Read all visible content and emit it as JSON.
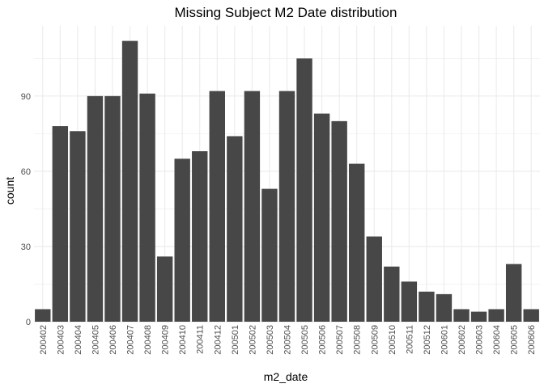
{
  "chart_data": {
    "type": "bar",
    "title": "Missing Subject M2 Date distribution",
    "xlabel": "m2_date",
    "ylabel": "count",
    "ylim": [
      0,
      118
    ],
    "y_ticks": [
      0,
      30,
      60,
      90
    ],
    "grid": true,
    "bar_color": "#474747",
    "grid_color": "#ebebeb",
    "categories": [
      "200402",
      "200403",
      "200404",
      "200405",
      "200406",
      "200407",
      "200408",
      "200409",
      "200410",
      "200411",
      "200412",
      "200501",
      "200502",
      "200503",
      "200504",
      "200505",
      "200506",
      "200507",
      "200508",
      "200509",
      "200510",
      "200511",
      "200512",
      "200601",
      "200602",
      "200603",
      "200604",
      "200605",
      "200606"
    ],
    "values": [
      5,
      78,
      76,
      90,
      90,
      112,
      91,
      26,
      65,
      68,
      92,
      74,
      92,
      53,
      92,
      105,
      83,
      80,
      63,
      34,
      22,
      16,
      12,
      11,
      5,
      4,
      5,
      23,
      5
    ]
  }
}
